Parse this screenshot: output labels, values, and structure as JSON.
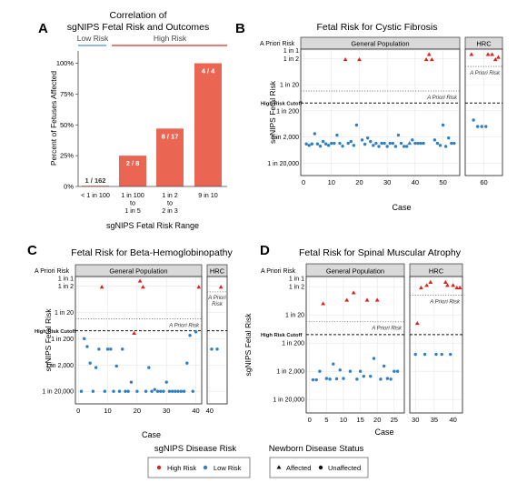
{
  "colors": {
    "high_risk": "#d7261e",
    "low_risk": "#2f7fc1",
    "bar": "#ea6552",
    "low_line": "#6aa3d8",
    "high_line": "#e2503f",
    "strip_fill": "#d9d9d9",
    "panel_bg": "#ffffff",
    "grid": "#e6e6e6"
  },
  "y_axis_title": "sgNIPS Fetal Risk",
  "x_axis_title": "Case",
  "apriori_axis_label": "A Priori Risk",
  "cutoff_axis_label": "High Risk Cutoff",
  "apriori_line_label": "A Priori Risk",
  "strip_general": "General Population",
  "strip_hrc": "HRC",
  "legend": {
    "risk_title": "sgNIPS Disease Risk",
    "risk_items": [
      "High Risk",
      "Low Risk"
    ],
    "status_title": "Newborn Disease Status",
    "status_items": [
      "Affected",
      "Unaffected"
    ]
  },
  "chart_data": [
    {
      "panel_letter": "A",
      "type": "bar",
      "title": "Correlation of sgNIPS Fetal Risk and Outcomes",
      "bracket_labels": [
        "Low Risk",
        "High Risk"
      ],
      "categories": [
        [
          "< 1 in 100"
        ],
        [
          "1 in 100",
          "to",
          "1 in 5"
        ],
        [
          "1 in 2",
          "to",
          "2 in 3"
        ],
        [
          "9 in 10"
        ]
      ],
      "values": [
        0.6,
        25,
        47,
        100
      ],
      "bar_labels": [
        "1 / 162",
        "2 / 8",
        "8 / 17",
        "4 / 4"
      ],
      "xlabel": "sgNIPS Fetal Risk Range",
      "ylabel": "Percent of Fetuses Affected",
      "yticks": [
        "0%",
        "25%",
        "50%",
        "75%",
        "100%"
      ],
      "ylim": [
        0,
        110
      ]
    },
    {
      "panel_letter": "B",
      "type": "scatter",
      "title": "Fetal Risk for Cystic Fibrosis",
      "ytick_labels": [
        "1 in 1",
        "1 in 2",
        "1 in 20",
        "1 in 200",
        "1 in 2,000",
        "1 in 20,000"
      ],
      "gp_xticks": [
        "0",
        "10",
        "20",
        "30",
        "40",
        "50"
      ],
      "hrc_xticks": [
        "60"
      ],
      "gp_xlim": [
        -1,
        56
      ],
      "hrc_xlim": [
        55.5,
        64.5
      ],
      "apriori_value": 0.0286,
      "cutoff_value": 0.01,
      "hrc_apriori_value": 0.25,
      "gp_points": [
        [
          1,
          3700,
          "lo",
          "un"
        ],
        [
          2,
          4200,
          "lo",
          "un"
        ],
        [
          3,
          3700,
          "lo",
          "un"
        ],
        [
          4,
          1500,
          "lo",
          "un"
        ],
        [
          5,
          3700,
          "lo",
          "un"
        ],
        [
          6,
          4500,
          "lo",
          "un"
        ],
        [
          7,
          3000,
          "lo",
          "un"
        ],
        [
          8,
          3700,
          "lo",
          "un"
        ],
        [
          9,
          4200,
          "lo",
          "un"
        ],
        [
          10,
          3500,
          "lo",
          "un"
        ],
        [
          11,
          3500,
          "lo",
          "un"
        ],
        [
          12,
          1700,
          "lo",
          "un"
        ],
        [
          13,
          3500,
          "lo",
          "un"
        ],
        [
          14,
          4500,
          "lo",
          "un"
        ],
        [
          15,
          2.2,
          "hi",
          "af"
        ],
        [
          16,
          3500,
          "lo",
          "un"
        ],
        [
          17,
          3000,
          "lo",
          "un"
        ],
        [
          18,
          4200,
          "lo",
          "un"
        ],
        [
          19,
          700,
          "lo",
          "un"
        ],
        [
          20,
          2.2,
          "hi",
          "af"
        ],
        [
          21,
          2600,
          "lo",
          "un"
        ],
        [
          22,
          3800,
          "lo",
          "un"
        ],
        [
          23,
          2200,
          "lo",
          "un"
        ],
        [
          24,
          3000,
          "lo",
          "un"
        ],
        [
          25,
          4200,
          "lo",
          "un"
        ],
        [
          26,
          3500,
          "lo",
          "un"
        ],
        [
          27,
          4600,
          "lo",
          "un"
        ],
        [
          28,
          3500,
          "lo",
          "un"
        ],
        [
          29,
          3500,
          "lo",
          "un"
        ],
        [
          30,
          4600,
          "lo",
          "un"
        ],
        [
          31,
          3500,
          "lo",
          "un"
        ],
        [
          32,
          3500,
          "lo",
          "un"
        ],
        [
          33,
          4600,
          "lo",
          "un"
        ],
        [
          34,
          1700,
          "lo",
          "un"
        ],
        [
          35,
          3500,
          "lo",
          "un"
        ],
        [
          36,
          4600,
          "lo",
          "un"
        ],
        [
          37,
          4600,
          "lo",
          "un"
        ],
        [
          38,
          3500,
          "lo",
          "af"
        ],
        [
          39,
          2600,
          "lo",
          "un"
        ],
        [
          40,
          3500,
          "lo",
          "un"
        ],
        [
          41,
          3500,
          "lo",
          "un"
        ],
        [
          42,
          3500,
          "lo",
          "un"
        ],
        [
          43,
          3500,
          "lo",
          "un"
        ],
        [
          44,
          2.2,
          "hi",
          "af"
        ],
        [
          45,
          1.4,
          "hi",
          "af"
        ],
        [
          46,
          2.2,
          "hi",
          "af"
        ],
        [
          47,
          2600,
          "lo",
          "un"
        ],
        [
          48,
          3500,
          "lo",
          "un"
        ],
        [
          49,
          4200,
          "lo",
          "un"
        ],
        [
          50,
          700,
          "lo",
          "un"
        ],
        [
          51,
          4600,
          "lo",
          "un"
        ],
        [
          52,
          2200,
          "lo",
          "un"
        ],
        [
          53,
          3500,
          "lo",
          "un"
        ],
        [
          54,
          3500,
          "lo",
          "un"
        ]
      ],
      "hrc_points": [
        [
          57,
          1.4,
          "hi",
          "af"
        ],
        [
          57.5,
          450,
          "lo",
          "un"
        ],
        [
          58.5,
          800,
          "lo",
          "un"
        ],
        [
          59.5,
          800,
          "lo",
          "un"
        ],
        [
          60.5,
          800,
          "lo",
          "un"
        ],
        [
          61,
          1.4,
          "hi",
          "af"
        ],
        [
          62,
          1.4,
          "hi",
          "af"
        ],
        [
          62.8,
          2.2,
          "hi",
          "af"
        ],
        [
          63.5,
          1.8,
          "hi",
          "af"
        ]
      ]
    },
    {
      "panel_letter": "C",
      "type": "scatter",
      "title": "Fetal Risk for Beta-Hemoglobinopathy",
      "ytick_labels": [
        "1 in 1",
        "1 in 2",
        "1 in 20",
        "1 in 200",
        "1 in 2,000",
        "1 in 20,000"
      ],
      "gp_xticks": [
        "0",
        "10",
        "20",
        "30",
        "40"
      ],
      "hrc_xticks": [
        "40"
      ],
      "gp_xlim": [
        -1,
        42
      ],
      "hrc_xlim": [
        39,
        47
      ],
      "apriori_value": 0.0286,
      "cutoff_value": 0.01,
      "hrc_apriori_value": 0.3,
      "gp_points": [
        [
          1,
          20000,
          "lo",
          "un"
        ],
        [
          2,
          200,
          "lo",
          "un"
        ],
        [
          3,
          400,
          "lo",
          "un"
        ],
        [
          4,
          1700,
          "lo",
          "un"
        ],
        [
          5,
          20000,
          "lo",
          "un"
        ],
        [
          6,
          2500,
          "lo",
          "un"
        ],
        [
          7,
          500,
          "lo",
          "un"
        ],
        [
          8,
          2.2,
          "hi",
          "af"
        ],
        [
          9,
          20000,
          "lo",
          "un"
        ],
        [
          10,
          500,
          "lo",
          "un"
        ],
        [
          11,
          500,
          "lo",
          "un"
        ],
        [
          12,
          20000,
          "lo",
          "un"
        ],
        [
          13,
          2200,
          "lo",
          "un"
        ],
        [
          14,
          20000,
          "lo",
          "un"
        ],
        [
          15,
          500,
          "lo",
          "un"
        ],
        [
          16,
          20000,
          "lo",
          "un"
        ],
        [
          17,
          20000,
          "lo",
          "un"
        ],
        [
          18,
          9000,
          "lo",
          "un"
        ],
        [
          19,
          125,
          "hi",
          "af"
        ],
        [
          20,
          20000,
          "lo",
          "un"
        ],
        [
          21,
          1.3,
          "hi",
          "af"
        ],
        [
          22,
          2.2,
          "hi",
          "af"
        ],
        [
          23,
          20000,
          "lo",
          "un"
        ],
        [
          24,
          2500,
          "lo",
          "un"
        ],
        [
          25,
          20000,
          "lo",
          "un"
        ],
        [
          26,
          17000,
          "lo",
          "un"
        ],
        [
          27,
          20000,
          "lo",
          "un"
        ],
        [
          28,
          20000,
          "lo",
          "un"
        ],
        [
          29,
          20000,
          "lo",
          "un"
        ],
        [
          30,
          9000,
          "lo",
          "un"
        ],
        [
          31,
          20000,
          "lo",
          "un"
        ],
        [
          32,
          20000,
          "lo",
          "un"
        ],
        [
          33,
          20000,
          "lo",
          "un"
        ],
        [
          34,
          20000,
          "lo",
          "un"
        ],
        [
          35,
          20000,
          "lo",
          "un"
        ],
        [
          36,
          20000,
          "lo",
          "un"
        ],
        [
          37,
          1700,
          "lo",
          "un"
        ],
        [
          38,
          150,
          "lo",
          "un"
        ],
        [
          39,
          20000,
          "lo",
          "un"
        ],
        [
          40,
          110,
          "lo",
          "un"
        ],
        [
          41,
          2.2,
          "hi",
          "af"
        ]
      ],
      "hrc_points": [
        [
          40.8,
          500,
          "lo",
          "un"
        ],
        [
          43,
          500,
          "lo",
          "un"
        ],
        [
          44.5,
          2.2,
          "hi",
          "af"
        ]
      ]
    },
    {
      "panel_letter": "D",
      "type": "scatter",
      "title": "Fetal Risk for Spinal Muscular Atrophy",
      "ytick_labels": [
        "1 in 1",
        "1 in 2",
        "1 in 20",
        "1 in 200",
        "1 in 2,000",
        "1 in 20,000"
      ],
      "gp_xticks": [
        "0",
        "5",
        "10",
        "15",
        "20",
        "25"
      ],
      "hrc_xticks": [
        "30",
        "35",
        "40"
      ],
      "gp_xlim": [
        -1,
        28
      ],
      "hrc_xlim": [
        28.5,
        42.5
      ],
      "apriori_value": 0.0286,
      "cutoff_value": 0.01,
      "hrc_apriori_value": 0.25,
      "gp_points": [
        [
          1,
          4000,
          "lo",
          "un"
        ],
        [
          2,
          4000,
          "lo",
          "un"
        ],
        [
          3,
          2000,
          "lo",
          "un"
        ],
        [
          4,
          8,
          "hi",
          "af"
        ],
        [
          5,
          3600,
          "lo",
          "un"
        ],
        [
          6,
          3800,
          "lo",
          "un"
        ],
        [
          7,
          1100,
          "lo",
          "un"
        ],
        [
          8,
          3700,
          "lo",
          "un"
        ],
        [
          9,
          1800,
          "lo",
          "un"
        ],
        [
          10,
          3600,
          "lo",
          "un"
        ],
        [
          11,
          6,
          "hi",
          "af"
        ],
        [
          12,
          2000,
          "lo",
          "un"
        ],
        [
          13,
          3.3,
          "hi",
          "af"
        ],
        [
          14,
          3800,
          "lo",
          "un"
        ],
        [
          15,
          2000,
          "lo",
          "un"
        ],
        [
          16,
          3000,
          "lo",
          "un"
        ],
        [
          17,
          6,
          "hi",
          "af"
        ],
        [
          18,
          3000,
          "lo",
          "un"
        ],
        [
          19,
          700,
          "lo",
          "un"
        ],
        [
          20,
          6,
          "hi",
          "af"
        ],
        [
          21,
          3800,
          "lo",
          "un"
        ],
        [
          22,
          1300,
          "lo",
          "un"
        ],
        [
          23,
          3600,
          "lo",
          "un"
        ],
        [
          24,
          3800,
          "lo",
          "un"
        ],
        [
          25,
          2000,
          "lo",
          "un"
        ],
        [
          26,
          2000,
          "lo",
          "un"
        ]
      ],
      "hrc_points": [
        [
          30,
          500,
          "lo",
          "un"
        ],
        [
          30.5,
          40,
          "hi",
          "af"
        ],
        [
          31.5,
          2.2,
          "hi",
          "af"
        ],
        [
          32.5,
          500,
          "lo",
          "un"
        ],
        [
          33,
          1.8,
          "hi",
          "af"
        ],
        [
          34,
          1.4,
          "hi",
          "af"
        ],
        [
          35.5,
          500,
          "lo",
          "un"
        ],
        [
          37,
          500,
          "lo",
          "un"
        ],
        [
          38,
          1.4,
          "hi",
          "af"
        ],
        [
          38.5,
          1.8,
          "hi",
          "af"
        ],
        [
          39.3,
          500,
          "lo",
          "un"
        ],
        [
          40,
          1.8,
          "hi",
          "af"
        ],
        [
          41,
          2.2,
          "hi",
          "af"
        ],
        [
          41.8,
          2.2,
          "hi",
          "af"
        ]
      ]
    }
  ]
}
